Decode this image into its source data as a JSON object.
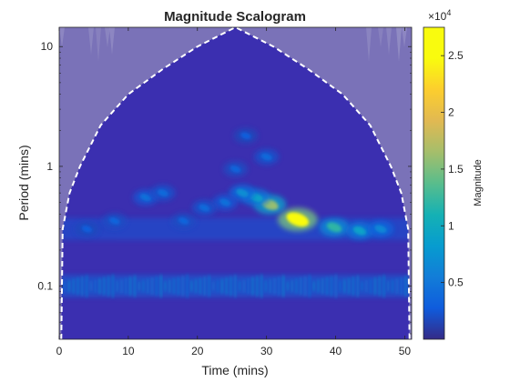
{
  "chart_data": {
    "type": "heatmap",
    "title": "Magnitude Scalogram",
    "xlabel": "Time (mins)",
    "ylabel": "Period (mins)",
    "xlim": [
      0,
      51
    ],
    "ylim": [
      0.036,
      14.5
    ],
    "yscale": "log",
    "x_ticks": [
      0,
      10,
      20,
      30,
      40,
      50
    ],
    "y_ticks": [
      0.1,
      1,
      10
    ],
    "y_tick_labels": [
      "0.1",
      "1",
      "10"
    ],
    "colorbar": {
      "label": "Magnitude",
      "exponent_label": "×10",
      "exponent_power": "4",
      "range": [
        0,
        27500
      ],
      "ticks": [
        0.5,
        1,
        1.5,
        2,
        2.5
      ],
      "tick_labels": [
        "0.5",
        "1",
        "1.5",
        "2",
        "2.5"
      ],
      "colormap": "parula"
    },
    "cone_of_influence": {
      "style": "white dashed",
      "shaded_color": "#7a72b8",
      "points": [
        {
          "x": 0.3,
          "y": 0.036
        },
        {
          "x": 0.5,
          "y": 0.3
        },
        {
          "x": 1.5,
          "y": 0.6
        },
        {
          "x": 3,
          "y": 1.0
        },
        {
          "x": 6,
          "y": 2.2
        },
        {
          "x": 10,
          "y": 4.0
        },
        {
          "x": 15,
          "y": 6.5
        },
        {
          "x": 20,
          "y": 10.0
        },
        {
          "x": 25.5,
          "y": 14.5
        },
        {
          "x": 31,
          "y": 10.0
        },
        {
          "x": 36,
          "y": 6.5
        },
        {
          "x": 41,
          "y": 4.0
        },
        {
          "x": 45,
          "y": 2.2
        },
        {
          "x": 48,
          "y": 1.0
        },
        {
          "x": 49.5,
          "y": 0.6
        },
        {
          "x": 50.5,
          "y": 0.3
        },
        {
          "x": 50.7,
          "y": 0.036
        }
      ]
    },
    "features": [
      {
        "x": 34.5,
        "y": 0.36,
        "magnitude": 27000
      },
      {
        "x": 30.5,
        "y": 0.48,
        "magnitude": 16000
      },
      {
        "x": 39.8,
        "y": 0.31,
        "magnitude": 12000
      },
      {
        "x": 43.5,
        "y": 0.29,
        "magnitude": 9000
      },
      {
        "x": 28.5,
        "y": 0.55,
        "magnitude": 9000
      },
      {
        "x": 26.5,
        "y": 0.6,
        "magnitude": 7000
      },
      {
        "x": 46.5,
        "y": 0.3,
        "magnitude": 6500
      },
      {
        "x": 24,
        "y": 0.5,
        "magnitude": 4500
      },
      {
        "x": 21,
        "y": 0.45,
        "magnitude": 4000
      },
      {
        "x": 12.5,
        "y": 0.55,
        "magnitude": 4500
      },
      {
        "x": 15,
        "y": 0.6,
        "magnitude": 4000
      },
      {
        "x": 18,
        "y": 0.35,
        "magnitude": 3500
      },
      {
        "x": 8,
        "y": 0.35,
        "magnitude": 3500
      },
      {
        "x": 4,
        "y": 0.3,
        "magnitude": 3000
      },
      {
        "x": 30,
        "y": 1.2,
        "magnitude": 4000
      },
      {
        "x": 27,
        "y": 1.8,
        "magnitude": 3000
      },
      {
        "x": 25.5,
        "y": 0.95,
        "magnitude": 3500
      }
    ],
    "background_bands": [
      {
        "y": 0.1,
        "magnitude": 4000
      },
      {
        "y": 0.3,
        "magnitude": 2500
      }
    ]
  }
}
